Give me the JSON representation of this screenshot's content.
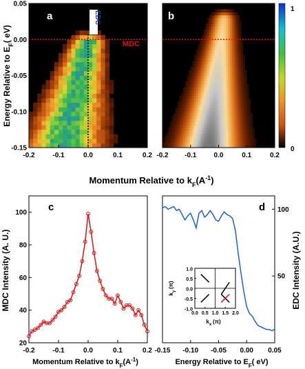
{
  "chart_data": [
    {
      "id": "a",
      "type": "heatmap",
      "panel_label": "a",
      "xlim": [
        -0.2,
        0.2
      ],
      "ylim": [
        -0.15,
        0.05
      ],
      "xticks": [
        -0.2,
        -0.1,
        0.0,
        0.1,
        0.2
      ],
      "yticks": [
        0.05,
        0.0,
        -0.05,
        -0.1,
        -0.15
      ],
      "xtick_labels": [
        "-0.2",
        "-0.1",
        "0.0",
        "0.1",
        "0.2"
      ],
      "ytick_labels": [
        "0.05",
        "0.00",
        "-0.05",
        "-0.10",
        "-0.15"
      ],
      "ylabel": "Energy Relative to E",
      "ylabel_sub": "F",
      "ylabel_unit": "( eV)",
      "annotations": [
        {
          "text": "EDC",
          "color": "#1a3fb5",
          "cut": "vertical",
          "at": 0.0
        },
        {
          "text": "MDC",
          "color": "#e01010",
          "cut": "horizontal",
          "at": 0.0
        }
      ],
      "description_band": {
        "shape": "dispersing band, k = 0 at E = 0, k ≈ -0.08 at E = -0.15"
      }
    },
    {
      "id": "b",
      "type": "heatmap",
      "panel_label": "b",
      "xlim": [
        -0.2,
        0.2
      ],
      "ylim": [
        -0.15,
        0.05
      ],
      "xticks": [
        -0.2,
        -0.1,
        0.0,
        0.1,
        0.2
      ],
      "xtick_labels": [
        "-0.2",
        "-0.1",
        "0.0",
        "0.1",
        "0.2"
      ],
      "annotations": [
        {
          "text": "",
          "color": "#e01010",
          "cut": "horizontal",
          "at": 0.0
        }
      ],
      "colorbar": {
        "min": 0,
        "max": 1,
        "tick_labels": [
          "1",
          "0"
        ],
        "colors": [
          "#1030d0",
          "#10c0d0",
          "#40c040",
          "#c8d820",
          "#f09020",
          "#c85010",
          "#000000"
        ]
      },
      "shared_xlabel": "Momentum Relative to k",
      "shared_xlabel_sub": "F",
      "shared_xlabel_unit": "(A",
      "shared_xlabel_sup": "-1",
      "shared_xlabel_close": ")"
    },
    {
      "id": "c",
      "type": "line",
      "panel_label": "c",
      "color": "#e01010",
      "markers": "open-circle",
      "xlim": [
        -0.2,
        0.2
      ],
      "ylim": [
        20,
        110
      ],
      "xticks": [
        -0.2,
        -0.1,
        0.0,
        0.1,
        0.2
      ],
      "yticks": [
        20,
        40,
        60,
        80,
        100
      ],
      "xtick_labels": [
        "-0.2",
        "-0.1",
        "0.0",
        "0.1",
        "0.2"
      ],
      "ytick_labels": [
        "20",
        "40",
        "60",
        "80",
        "100"
      ],
      "ylabel": "MDC Intensity (A. U.)",
      "xlabel": "Momentum Relative to k",
      "xlabel_sub": "F",
      "xlabel_unit": "(A",
      "xlabel_sup": "-1",
      "xlabel_close": ")",
      "x": [
        -0.2,
        -0.19,
        -0.18,
        -0.17,
        -0.16,
        -0.15,
        -0.14,
        -0.13,
        -0.12,
        -0.11,
        -0.1,
        -0.09,
        -0.08,
        -0.07,
        -0.06,
        -0.05,
        -0.04,
        -0.03,
        -0.02,
        -0.01,
        0.0,
        0.01,
        0.02,
        0.03,
        0.04,
        0.05,
        0.06,
        0.07,
        0.08,
        0.09,
        0.1,
        0.11,
        0.12,
        0.13,
        0.14,
        0.15,
        0.16,
        0.17,
        0.18,
        0.19,
        0.2
      ],
      "y": [
        24,
        27,
        28,
        29,
        31,
        33,
        32,
        32,
        34,
        36,
        39,
        40,
        42,
        45,
        46,
        51,
        56,
        61,
        70,
        82,
        99,
        88,
        75,
        64,
        58,
        53,
        49,
        47,
        47,
        44,
        49,
        45,
        41,
        43,
        43,
        41,
        37,
        40,
        37,
        31,
        27
      ]
    },
    {
      "id": "d",
      "type": "line",
      "panel_label": "d",
      "color": "#1a5fe0",
      "xlim": [
        -0.15,
        0.05
      ],
      "ylim": [
        0,
        110
      ],
      "xticks": [
        -0.15,
        -0.1,
        -0.05,
        0.0,
        0.05
      ],
      "yticks": [
        50,
        100
      ],
      "xtick_labels": [
        "-0.15",
        "-0.10",
        "-0.05",
        "0.00",
        "0.05"
      ],
      "ytick_labels": [
        "50",
        "100"
      ],
      "ylabel": "EDC Intensity (A.U.)",
      "xlabel": "Energy Relative to E",
      "xlabel_sub": "F",
      "xlabel_unit": "( eV)",
      "x": [
        -0.15,
        -0.145,
        -0.14,
        -0.135,
        -0.13,
        -0.125,
        -0.12,
        -0.115,
        -0.11,
        -0.105,
        -0.1,
        -0.095,
        -0.09,
        -0.085,
        -0.08,
        -0.075,
        -0.07,
        -0.065,
        -0.06,
        -0.055,
        -0.05,
        -0.045,
        -0.04,
        -0.035,
        -0.03,
        -0.025,
        -0.02,
        -0.015,
        -0.01,
        -0.005,
        0.0,
        0.005,
        0.01,
        0.015,
        0.02,
        0.025,
        0.03,
        0.035,
        0.04,
        0.045,
        0.05
      ],
      "y": [
        101,
        102,
        100,
        101,
        102,
        99,
        100,
        96,
        92,
        95,
        97,
        92,
        86,
        97,
        99,
        94,
        96,
        99,
        96,
        92,
        91,
        95,
        98,
        96,
        95,
        93,
        84,
        67,
        52,
        38,
        27,
        22,
        20,
        16,
        13,
        12,
        11,
        10,
        10,
        9,
        10
      ],
      "inset": {
        "xlim": [
          0.0,
          2.0
        ],
        "ylim": [
          -1.0,
          1.0
        ],
        "xticks": [
          0.0,
          0.5,
          1.0,
          1.5,
          2.0
        ],
        "yticks": [
          1.0,
          0.5,
          0.0,
          -0.5,
          -1.0
        ],
        "xtick_labels": [
          "0.0",
          "0.5",
          "1.0",
          "1.5",
          "2.0"
        ],
        "ytick_labels": [
          "1.0",
          "0.5",
          "0.0",
          "-0.5",
          "-1.0"
        ],
        "xlabel": "k",
        "xlabel_sub": "x",
        "xlabel_unit": "(π)",
        "ylabel": "k",
        "ylabel_sub": "y",
        "ylabel_unit": "(π)",
        "segments": [
          {
            "x1": 0.3,
            "y1": 0.7,
            "x2": 0.7,
            "y2": 0.3,
            "color": "#000000"
          },
          {
            "x1": 1.3,
            "y1": -0.3,
            "x2": 1.7,
            "y2": 0.3,
            "color": "#000000"
          },
          {
            "x1": 0.3,
            "y1": -0.7,
            "x2": 0.7,
            "y2": -0.3,
            "color": "#000000"
          },
          {
            "x1": 1.3,
            "y1": -0.3,
            "x2": 1.7,
            "y2": -0.7,
            "color": "#000000"
          },
          {
            "x1": 1.3,
            "y1": -0.7,
            "x2": 1.7,
            "y2": -0.3,
            "color": "#e01010"
          }
        ]
      }
    }
  ]
}
